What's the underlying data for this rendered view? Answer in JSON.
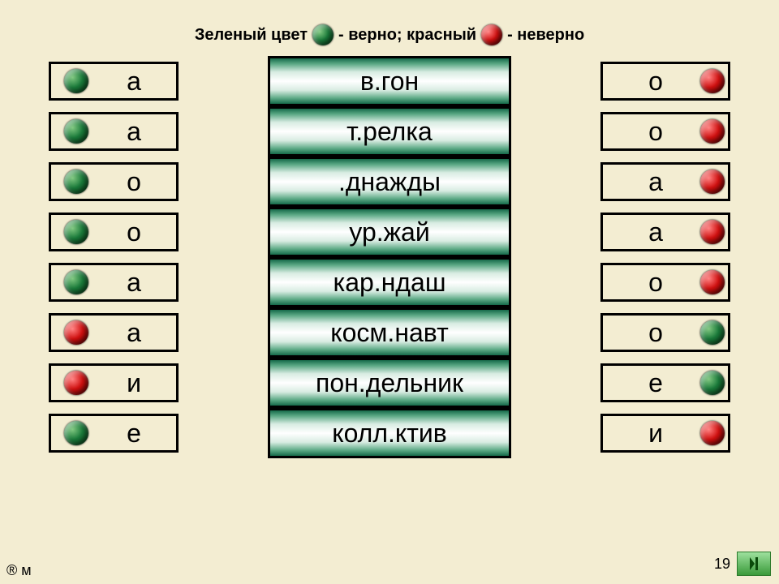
{
  "colors": {
    "background": "#f3edd2",
    "correct": "green",
    "incorrect": "red"
  },
  "legend": {
    "part1": "Зеленый цвет",
    "part2": "- верно; красный",
    "part3": "- неверно"
  },
  "rows": [
    {
      "left_letter": "а",
      "left_state": "green",
      "word": "в.гон",
      "right_letter": "о",
      "right_state": "red"
    },
    {
      "left_letter": "а",
      "left_state": "green",
      "word": "т.релка",
      "right_letter": "о",
      "right_state": "red"
    },
    {
      "left_letter": "о",
      "left_state": "green",
      "word": ".днажды",
      "right_letter": "а",
      "right_state": "red"
    },
    {
      "left_letter": "о",
      "left_state": "green",
      "word": "ур.жай",
      "right_letter": "а",
      "right_state": "red"
    },
    {
      "left_letter": "а",
      "left_state": "green",
      "word": "кар.ндаш",
      "right_letter": "о",
      "right_state": "red"
    },
    {
      "left_letter": "а",
      "left_state": "red",
      "word": "косм.навт",
      "right_letter": "о",
      "right_state": "green"
    },
    {
      "left_letter": "и",
      "left_state": "red",
      "word": "пон.дельник",
      "right_letter": "е",
      "right_state": "green"
    },
    {
      "left_letter": "е",
      "left_state": "green",
      "word": "колл.ктив",
      "right_letter": "и",
      "right_state": "red"
    }
  ],
  "page_number": "19",
  "copyright": "® м"
}
